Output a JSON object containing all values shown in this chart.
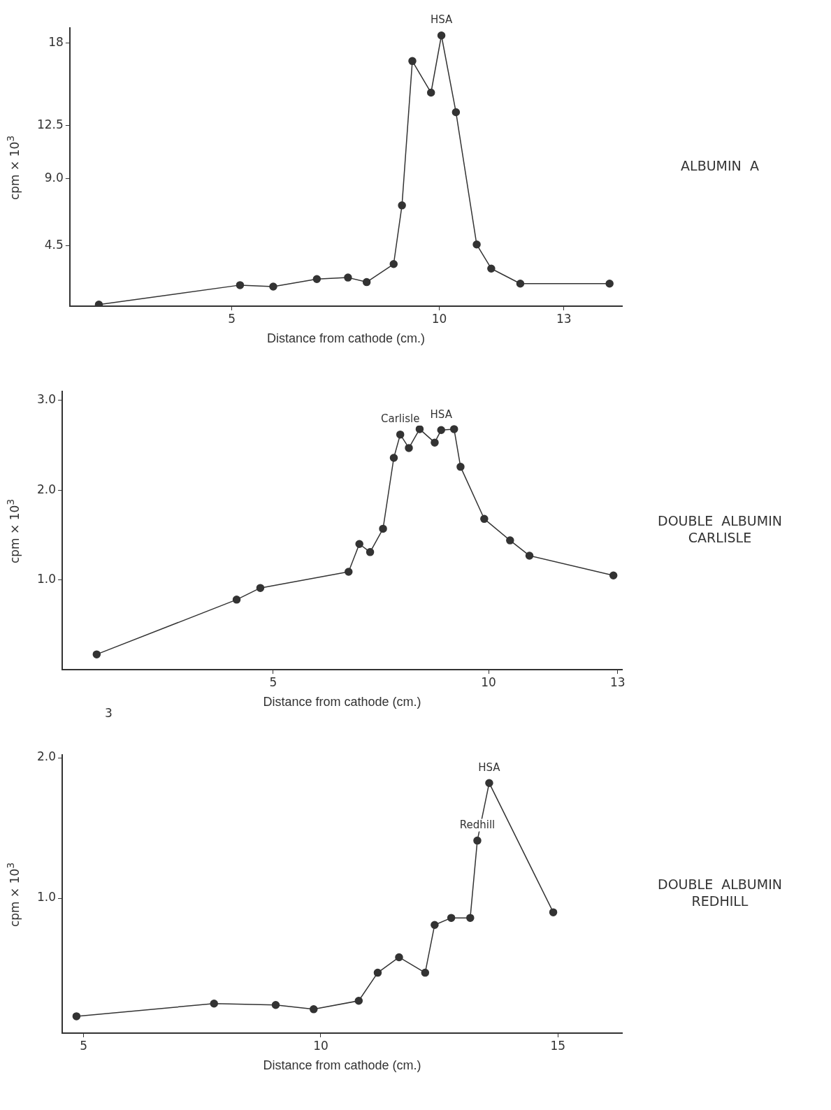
{
  "chart_data": [
    {
      "type": "line",
      "xlabel": "Distance from cathode (cm.)",
      "ylabel": "cpm × 10$^{3}$",
      "color": "#333333",
      "marker": "circle",
      "grid": false,
      "legend": false,
      "x": [
        1.8,
        5.2,
        6.0,
        7.05,
        7.8,
        8.25,
        8.9,
        9.1,
        9.35,
        9.8,
        10.05,
        10.4,
        10.9,
        11.25,
        11.95,
        14.1
      ],
      "values": [
        0.6,
        1.9,
        1.8,
        2.3,
        2.4,
        2.1,
        3.3,
        7.2,
        16.8,
        14.7,
        18.5,
        13.4,
        4.6,
        3.0,
        2.0,
        2.0
      ],
      "xlim": [
        1.1,
        14.4
      ],
      "xticks": [
        5,
        10,
        13
      ],
      "ylim": [
        0.5,
        19
      ],
      "yticks": [
        4.5,
        {
          "value": 9,
          "label": "9.0"
        },
        12.5,
        18
      ],
      "annotations": [
        "ALBUMIN  A",
        {
          "text": "HSA",
          "x": 10.05,
          "y": 18.5
        }
      ]
    },
    {
      "type": "line",
      "xlabel": "Distance from cathode (cm.)",
      "ylabel": "cpm × 10$^{3}$",
      "color": "#333333",
      "marker": "circle",
      "grid": false,
      "legend": false,
      "x": [
        0.9,
        4.15,
        4.7,
        6.75,
        7.0,
        7.25,
        7.55,
        7.8,
        7.95,
        8.15,
        8.4,
        8.75,
        8.9,
        9.2,
        9.35,
        9.9,
        10.5,
        10.95,
        12.9
      ],
      "values": [
        0.17,
        0.78,
        0.91,
        1.09,
        1.4,
        1.31,
        1.57,
        2.36,
        2.62,
        2.47,
        2.68,
        2.53,
        2.67,
        2.68,
        2.26,
        1.68,
        1.44,
        1.27,
        1.05
      ],
      "xlim": [
        0.1,
        13.1
      ],
      "xticks": [
        5,
        10,
        13
      ],
      "ylim": [
        0,
        3.1
      ],
      "yticks": [
        {
          "value": 1,
          "label": "1.0"
        },
        {
          "value": 2,
          "label": "2.0"
        },
        {
          "value": 3,
          "label": "3.0"
        }
      ],
      "annotations": [
        "DOUBLE  ALBUMIN\nCARLISLE",
        {
          "text": "Carlisle",
          "x": 7.95,
          "y": 2.62
        },
        {
          "text": "HSA",
          "x": 8.9,
          "y": 2.67
        },
        "3"
      ]
    },
    {
      "type": "line",
      "xlabel": "Distance from cathode (cm.)",
      "ylabel": "cpm × 10$^{3}$",
      "color": "#333333",
      "marker": "circle",
      "grid": false,
      "legend": false,
      "x": [
        4.85,
        7.75,
        9.05,
        9.85,
        10.8,
        11.2,
        11.65,
        12.2,
        12.4,
        12.75,
        13.15,
        13.3,
        13.55,
        14.9
      ],
      "values": [
        0.16,
        0.25,
        0.24,
        0.21,
        0.27,
        0.47,
        0.58,
        0.47,
        0.81,
        0.86,
        0.86,
        1.41,
        1.82,
        0.9
      ],
      "xlim": [
        4.55,
        16.35
      ],
      "xticks": [
        5,
        10,
        15
      ],
      "ylim": [
        0.04,
        2.02
      ],
      "yticks": [
        {
          "value": 1,
          "label": "1.0"
        },
        {
          "value": 2,
          "label": "2.0"
        }
      ],
      "annotations": [
        "DOUBLE  ALBUMIN\nREDHILL",
        {
          "text": "Redhill",
          "x": 13.3,
          "y": 1.41
        },
        {
          "text": "HSA",
          "x": 13.55,
          "y": 1.82
        }
      ]
    }
  ]
}
